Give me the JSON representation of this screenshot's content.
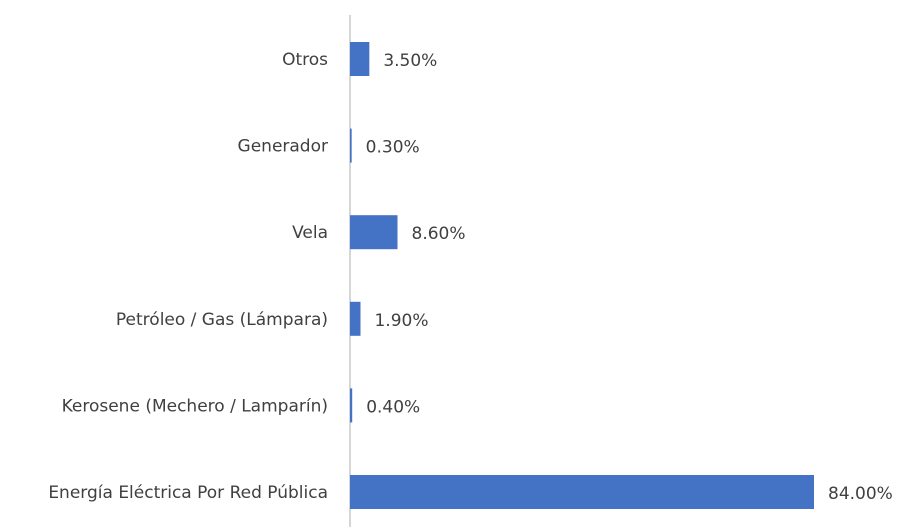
{
  "chart_data": {
    "type": "bar",
    "orientation": "horizontal",
    "categories": [
      "Otros",
      "Generador",
      "Vela",
      "Petróleo / Gas (Lámpara)",
      "Kerosene (Mechero / Lamparín)",
      "Energía Eléctrica Por Red Pública"
    ],
    "values": [
      3.5,
      0.3,
      8.6,
      1.9,
      0.4,
      84.0
    ],
    "value_labels": [
      "3.50%",
      "0.30%",
      "8.60%",
      "1.90%",
      "0.40%",
      "84.00%"
    ],
    "color": "#4472c4"
  }
}
